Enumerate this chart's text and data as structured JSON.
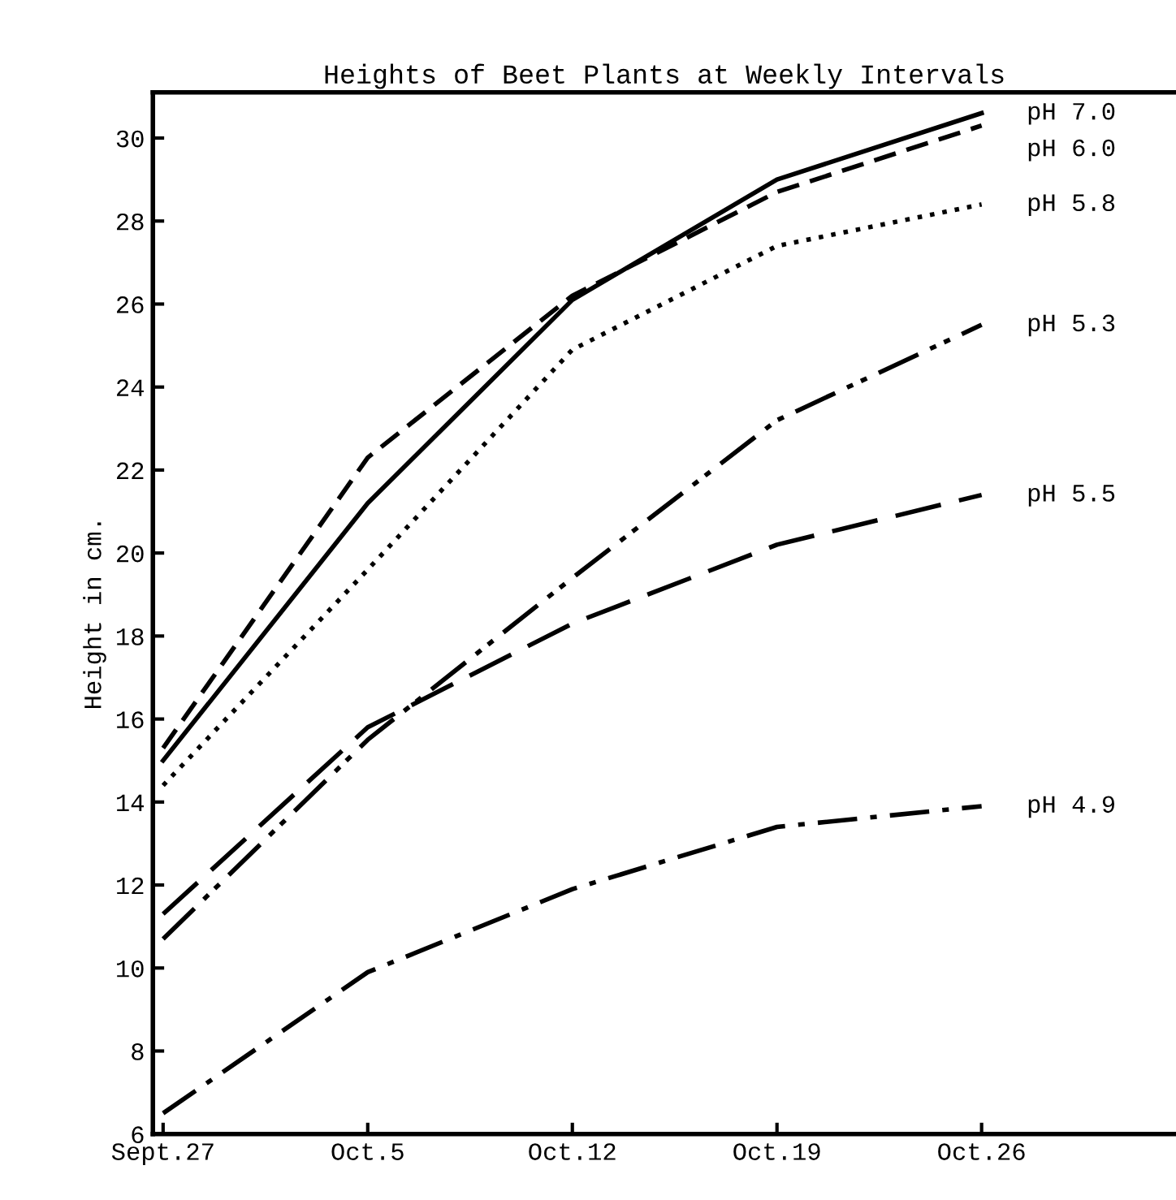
{
  "chart_data": {
    "type": "line",
    "title": "Heights of Beet Plants at Weekly Intervals",
    "ylabel": "Height in cm.",
    "categories": [
      "Sept.27",
      "Oct.5",
      "Oct.12",
      "Oct.19",
      "Oct.26"
    ],
    "ylim": [
      6,
      31.1
    ],
    "yticks": [
      6,
      8,
      10,
      12,
      14,
      16,
      18,
      20,
      22,
      24,
      26,
      28,
      30
    ],
    "grid": false,
    "legend": false,
    "marker": "none",
    "series": [
      {
        "name": "pH 7.0",
        "color": "#000000",
        "line_style": "solid",
        "values": [
          15.0,
          21.2,
          26.1,
          29.0,
          30.6
        ]
      },
      {
        "name": "pH 6.0",
        "color": "#000000",
        "line_style": "dashed",
        "values": [
          15.3,
          22.3,
          26.2,
          28.7,
          30.3
        ]
      },
      {
        "name": "pH 5.8",
        "color": "#000000",
        "line_style": "dotted",
        "values": [
          14.4,
          19.6,
          24.9,
          27.4,
          28.4
        ]
      },
      {
        "name": "pH 5.3",
        "color": "#000000",
        "line_style": "dashdotdot",
        "values": [
          10.7,
          15.5,
          19.4,
          23.2,
          25.5
        ]
      },
      {
        "name": "pH 5.5",
        "color": "#000000",
        "line_style": "longdash",
        "values": [
          11.3,
          15.8,
          18.3,
          20.2,
          21.4
        ]
      },
      {
        "name": "pH 4.9",
        "color": "#000000",
        "line_style": "dashdot",
        "values": [
          6.5,
          9.9,
          11.9,
          13.4,
          13.9
        ]
      }
    ]
  }
}
